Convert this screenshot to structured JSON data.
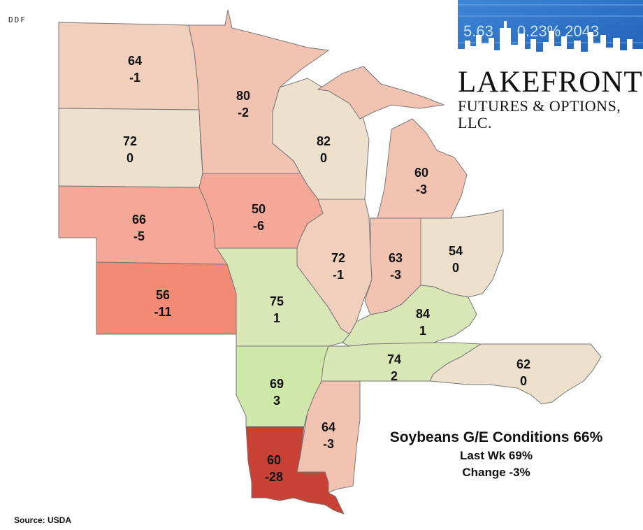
{
  "watermark": "DDF",
  "logo": {
    "banner_ticker": "5.63 ▲ 0.23% 2043",
    "line1": "LAKEFRONT",
    "line2": "FUTURES & OPTIONS, LLC."
  },
  "summary": {
    "headline": "Soybeans G/E Conditions 66%",
    "last_week": "Last Wk 69%",
    "change": "Change -3%"
  },
  "source": "Source: USDA",
  "colors": {
    "neutral": "#ede0cc",
    "light_red": "#f3c3b1",
    "mid_red": "#f5a897",
    "strong_red": "#f28a76",
    "dark_red": "#c94034",
    "light_green": "#d9e6b6",
    "green": "#cde8a8"
  },
  "states": [
    {
      "id": "ND",
      "value": "64",
      "change": "-1"
    },
    {
      "id": "MN",
      "value": "80",
      "change": "-2"
    },
    {
      "id": "SD",
      "value": "72",
      "change": "0"
    },
    {
      "id": "WI",
      "value": "82",
      "change": "0"
    },
    {
      "id": "MI",
      "value": "60",
      "change": "-3"
    },
    {
      "id": "NE",
      "value": "66",
      "change": "-5"
    },
    {
      "id": "IA",
      "value": "50",
      "change": "-6"
    },
    {
      "id": "IL",
      "value": "72",
      "change": "-1"
    },
    {
      "id": "IN",
      "value": "63",
      "change": "-3"
    },
    {
      "id": "OH",
      "value": "54",
      "change": "0"
    },
    {
      "id": "KS",
      "value": "56",
      "change": "-11"
    },
    {
      "id": "MO",
      "value": "75",
      "change": "1"
    },
    {
      "id": "KY",
      "value": "84",
      "change": "1"
    },
    {
      "id": "AR",
      "value": "69",
      "change": "3"
    },
    {
      "id": "TN",
      "value": "74",
      "change": "2"
    },
    {
      "id": "NC",
      "value": "62",
      "change": "0"
    },
    {
      "id": "MS",
      "value": "64",
      "change": "-3"
    },
    {
      "id": "LA",
      "value": "60",
      "change": "-28"
    }
  ]
}
